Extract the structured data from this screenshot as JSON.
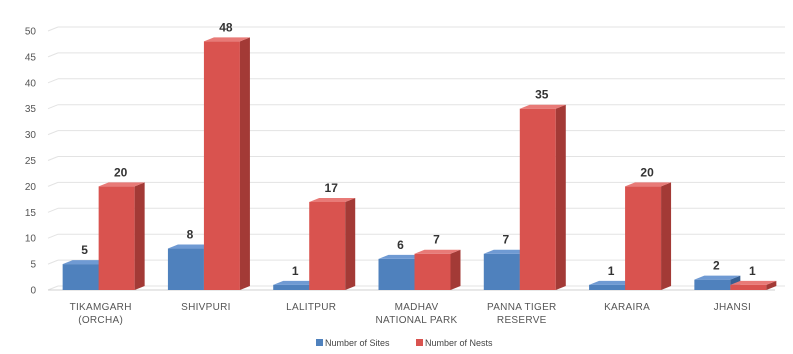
{
  "chart_data": {
    "type": "bar",
    "categories": [
      [
        "TIKAMGARH",
        "(ORCHA)"
      ],
      [
        "SHIVPURI"
      ],
      [
        "LALITPUR"
      ],
      [
        "MADHAV",
        "NATIONAL PARK"
      ],
      [
        "PANNA TIGER",
        "RESERVE"
      ],
      [
        "KARAIRA"
      ],
      [
        "JHANSI"
      ]
    ],
    "series": [
      {
        "name": "Number of Sites",
        "values": [
          5,
          8,
          1,
          6,
          7,
          1,
          2
        ]
      },
      {
        "name": "Number of Nests",
        "values": [
          20,
          48,
          17,
          7,
          35,
          20,
          1
        ]
      }
    ],
    "ylim": [
      0,
      50
    ],
    "yticks": [
      0,
      5,
      10,
      15,
      20,
      25,
      30,
      35,
      40,
      45,
      50
    ],
    "grid": true,
    "legend_position": "bottom",
    "three_d": true,
    "colors": {
      "sites_front": "#4f81bd",
      "sites_side": "#365f91",
      "sites_top": "#6f9ad3",
      "nests_front": "#d9534f",
      "nests_side": "#a33a36",
      "nests_top": "#e87a77",
      "grid": "#e3e3e3",
      "floor": "#d0d0d0"
    }
  }
}
